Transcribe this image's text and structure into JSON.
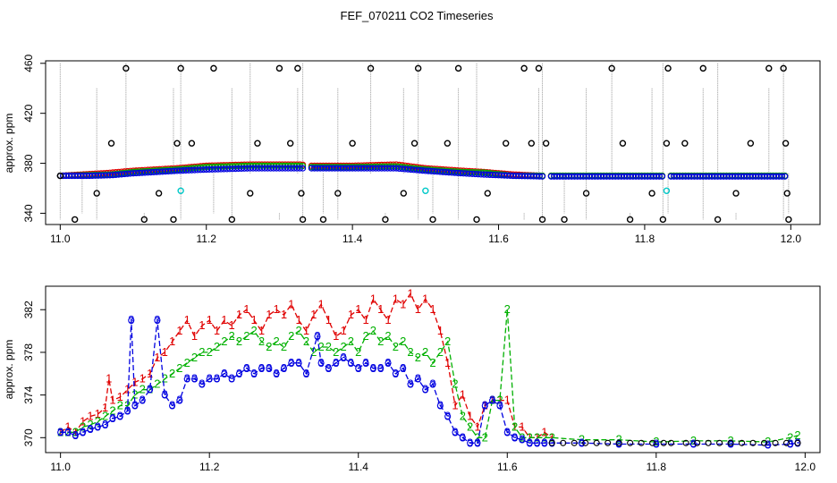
{
  "figure": {
    "title": "FEF_070211  CO2 Timeseries"
  },
  "colors": {
    "series1": "#e00000",
    "series2": "#00b000",
    "series3": "#0000e0",
    "black": "#000000",
    "cyan": "#00c8c8",
    "drop": "#9a9a9a"
  },
  "chart_data": [
    {
      "type": "scatter",
      "title": "FEF_070211  CO2 Timeseries",
      "xlabel": "",
      "ylabel": "approx. ppm",
      "xlim": [
        10.98,
        12.04
      ],
      "ylim": [
        331,
        462
      ],
      "xticks": [
        11.0,
        11.2,
        11.4,
        11.6,
        11.8,
        12.0
      ],
      "xtick_labels": [
        "11.0",
        "11.2",
        "11.4",
        "11.6",
        "11.8",
        "12.0"
      ],
      "yticks": [
        340,
        380,
        420,
        460
      ],
      "ytick_labels": [
        "340",
        "380",
        "420",
        "460"
      ],
      "gaps": [
        [
          11.335,
          11.34
        ],
        [
          11.66,
          11.67
        ],
        [
          11.825,
          11.835
        ]
      ],
      "series": [
        {
          "name": "1",
          "color": "#e00000",
          "keypoints": [
            [
              11.0,
              370
            ],
            [
              11.03,
              371
            ],
            [
              11.06,
              372
            ],
            [
              11.1,
              374
            ],
            [
              11.16,
              376
            ],
            [
              11.2,
              378
            ],
            [
              11.26,
              379
            ],
            [
              11.33,
              379
            ],
            [
              11.34,
              378
            ],
            [
              11.4,
              378
            ],
            [
              11.46,
              379
            ],
            [
              11.5,
              376
            ],
            [
              11.55,
              374
            ],
            [
              11.58,
              373
            ],
            [
              11.62,
              371
            ],
            [
              11.66,
              370
            ],
            [
              11.99,
              370
            ]
          ]
        },
        {
          "name": "2",
          "color": "#00b000",
          "keypoints": [
            [
              11.0,
              370
            ],
            [
              11.04,
              370.5
            ],
            [
              11.07,
              371
            ],
            [
              11.1,
              373
            ],
            [
              11.16,
              375
            ],
            [
              11.2,
              377
            ],
            [
              11.26,
              378
            ],
            [
              11.33,
              378
            ],
            [
              11.34,
              377
            ],
            [
              11.4,
              377
            ],
            [
              11.46,
              377.5
            ],
            [
              11.5,
              375
            ],
            [
              11.55,
              373
            ],
            [
              11.58,
              372.5
            ],
            [
              11.62,
              370
            ],
            [
              11.66,
              370
            ],
            [
              11.99,
              370
            ]
          ]
        },
        {
          "name": "3",
          "color": "#0000e0",
          "keypoints": [
            [
              11.0,
              370
            ],
            [
              11.04,
              370
            ],
            [
              11.07,
              370.5
            ],
            [
              11.1,
              372
            ],
            [
              11.16,
              374
            ],
            [
              11.2,
              375
            ],
            [
              11.26,
              376
            ],
            [
              11.33,
              376
            ],
            [
              11.34,
              376
            ],
            [
              11.4,
              376
            ],
            [
              11.46,
              376
            ],
            [
              11.5,
              374
            ],
            [
              11.55,
              372
            ],
            [
              11.58,
              371
            ],
            [
              11.62,
              370
            ],
            [
              11.66,
              369.5
            ],
            [
              11.99,
              369.5
            ]
          ]
        }
      ],
      "black_outliers": [
        [
          11.0,
          370
        ],
        [
          11.02,
          335
        ],
        [
          11.05,
          356
        ],
        [
          11.07,
          396
        ],
        [
          11.09,
          456
        ],
        [
          11.115,
          335
        ],
        [
          11.135,
          356
        ],
        [
          11.155,
          335
        ],
        [
          11.16,
          396
        ],
        [
          11.165,
          456
        ],
        [
          11.18,
          396
        ],
        [
          11.21,
          456
        ],
        [
          11.235,
          335
        ],
        [
          11.26,
          356
        ],
        [
          11.27,
          396
        ],
        [
          11.3,
          456
        ],
        [
          11.315,
          396
        ],
        [
          11.325,
          456
        ],
        [
          11.33,
          356
        ],
        [
          11.332,
          335
        ],
        [
          11.36,
          335
        ],
        [
          11.38,
          356
        ],
        [
          11.4,
          396
        ],
        [
          11.425,
          456
        ],
        [
          11.445,
          335
        ],
        [
          11.47,
          356
        ],
        [
          11.485,
          396
        ],
        [
          11.49,
          456
        ],
        [
          11.51,
          335
        ],
        [
          11.53,
          396
        ],
        [
          11.545,
          456
        ],
        [
          11.57,
          335
        ],
        [
          11.585,
          356
        ],
        [
          11.61,
          396
        ],
        [
          11.635,
          456
        ],
        [
          11.645,
          396
        ],
        [
          11.655,
          456
        ],
        [
          11.66,
          335
        ],
        [
          11.665,
          396
        ],
        [
          11.69,
          335
        ],
        [
          11.72,
          356
        ],
        [
          11.755,
          456
        ],
        [
          11.77,
          396
        ],
        [
          11.78,
          335
        ],
        [
          11.81,
          356
        ],
        [
          11.825,
          335
        ],
        [
          11.83,
          396
        ],
        [
          11.832,
          456
        ],
        [
          11.855,
          396
        ],
        [
          11.88,
          456
        ],
        [
          11.9,
          335
        ],
        [
          11.925,
          356
        ],
        [
          11.945,
          396
        ],
        [
          11.97,
          456
        ],
        [
          11.99,
          456
        ],
        [
          11.993,
          396
        ],
        [
          11.995,
          356
        ],
        [
          11.997,
          335
        ]
      ],
      "cyan_points": [
        [
          11.165,
          358
        ],
        [
          11.5,
          358
        ],
        [
          11.83,
          358
        ]
      ],
      "drop_lines_x": [
        11.0,
        11.03,
        11.05,
        11.09,
        11.115,
        11.155,
        11.165,
        11.21,
        11.235,
        11.26,
        11.3,
        11.325,
        11.332,
        11.36,
        11.38,
        11.425,
        11.445,
        11.47,
        11.49,
        11.51,
        11.545,
        11.57,
        11.635,
        11.655,
        11.66,
        11.69,
        11.72,
        11.755,
        11.78,
        11.81,
        11.825,
        11.832,
        11.88,
        11.9,
        11.925,
        11.97,
        11.99,
        11.997
      ]
    },
    {
      "type": "line",
      "title": "",
      "xlabel": "",
      "ylabel": "approx. ppm",
      "xlim": [
        10.98,
        12.02
      ],
      "ylim": [
        368.6,
        384.2
      ],
      "xticks": [
        11.0,
        11.2,
        11.4,
        11.6,
        11.8,
        12.0
      ],
      "xtick_labels": [
        "11.0",
        "11.2",
        "11.4",
        "11.6",
        "11.8",
        "12.0"
      ],
      "yticks": [
        370,
        374,
        378,
        382
      ],
      "ytick_labels": [
        "370",
        "374",
        "378",
        "382"
      ],
      "marker_labels": [
        "1",
        "2",
        "3"
      ],
      "series": [
        {
          "name": "1",
          "label": "1",
          "color": "#e00000",
          "x": [
            11.0,
            11.01,
            11.02,
            11.03,
            11.04,
            11.05,
            11.06,
            11.065,
            11.07,
            11.08,
            11.09,
            11.1,
            11.11,
            11.12,
            11.13,
            11.14,
            11.15,
            11.16,
            11.17,
            11.18,
            11.19,
            11.2,
            11.21,
            11.22,
            11.23,
            11.24,
            11.25,
            11.26,
            11.27,
            11.28,
            11.29,
            11.3,
            11.31,
            11.32,
            11.33,
            11.34,
            11.35,
            11.36,
            11.37,
            11.38,
            11.39,
            11.4,
            11.41,
            11.42,
            11.43,
            11.44,
            11.45,
            11.46,
            11.47,
            11.48,
            11.49,
            11.5,
            11.51,
            11.52,
            11.53,
            11.54,
            11.55,
            11.56,
            11.57,
            11.58,
            11.59,
            11.6,
            11.61,
            11.62,
            11.63,
            11.64,
            11.65,
            11.66
          ],
          "y": [
            370.5,
            371,
            370.5,
            371.5,
            372,
            372.2,
            372.8,
            375.5,
            373.5,
            373.8,
            374.5,
            375.2,
            375.5,
            376,
            377.5,
            378,
            379,
            380,
            381,
            379.5,
            380.5,
            381,
            380,
            381,
            380.5,
            381.5,
            382,
            381,
            380,
            381.5,
            382,
            381.5,
            382.5,
            381,
            380,
            381.5,
            382.5,
            381,
            379.5,
            380,
            381.5,
            382,
            381,
            383,
            382,
            381,
            383,
            382.5,
            383.5,
            382,
            383,
            382,
            380,
            377,
            373,
            374,
            372,
            371,
            373,
            373.5,
            373.5,
            373.5,
            371,
            371,
            370,
            370,
            370.5,
            370
          ]
        },
        {
          "name": "2",
          "label": "2",
          "color": "#00b000",
          "x": [
            11.0,
            11.01,
            11.02,
            11.03,
            11.04,
            11.05,
            11.06,
            11.07,
            11.08,
            11.09,
            11.1,
            11.11,
            11.12,
            11.13,
            11.14,
            11.15,
            11.16,
            11.17,
            11.18,
            11.19,
            11.2,
            11.21,
            11.22,
            11.23,
            11.24,
            11.25,
            11.26,
            11.27,
            11.28,
            11.29,
            11.3,
            11.31,
            11.32,
            11.33,
            11.34,
            11.35,
            11.36,
            11.37,
            11.38,
            11.39,
            11.4,
            11.41,
            11.42,
            11.43,
            11.44,
            11.45,
            11.46,
            11.47,
            11.48,
            11.49,
            11.5,
            11.51,
            11.52,
            11.53,
            11.54,
            11.55,
            11.56,
            11.57,
            11.58,
            11.59,
            11.6,
            11.61,
            11.62,
            11.63,
            11.64,
            11.65,
            11.66,
            11.7,
            11.75,
            11.8,
            11.85,
            11.9,
            11.95,
            11.98,
            11.99
          ],
          "y": [
            370.5,
            370.5,
            370.5,
            371,
            371.2,
            371.5,
            372,
            372.5,
            373,
            373,
            374,
            374.5,
            374.5,
            375,
            375.5,
            376,
            376.5,
            377,
            377.5,
            378,
            378,
            378.5,
            379,
            379.5,
            379,
            379.5,
            380,
            379,
            378.5,
            379,
            378.5,
            379.5,
            380,
            379,
            378,
            378.5,
            378.5,
            378,
            378.5,
            379,
            378,
            379.5,
            380,
            379,
            379.5,
            378.5,
            379,
            378,
            377.5,
            378,
            377,
            378,
            379,
            375,
            372,
            371,
            370,
            370,
            373.5,
            373.5,
            382,
            371,
            370,
            370,
            370,
            370,
            370,
            369.8,
            369.8,
            369.6,
            369.7,
            369.7,
            369.6,
            370,
            370.2
          ]
        },
        {
          "name": "3",
          "label": "3",
          "color": "#0000e0",
          "x": [
            11.0,
            11.01,
            11.02,
            11.03,
            11.04,
            11.05,
            11.06,
            11.07,
            11.08,
            11.09,
            11.095,
            11.1,
            11.11,
            11.12,
            11.13,
            11.14,
            11.15,
            11.16,
            11.17,
            11.18,
            11.19,
            11.2,
            11.21,
            11.22,
            11.23,
            11.24,
            11.25,
            11.26,
            11.27,
            11.28,
            11.29,
            11.3,
            11.31,
            11.32,
            11.33,
            11.345,
            11.35,
            11.36,
            11.37,
            11.38,
            11.39,
            11.4,
            11.41,
            11.42,
            11.43,
            11.44,
            11.45,
            11.46,
            11.47,
            11.48,
            11.49,
            11.5,
            11.51,
            11.52,
            11.53,
            11.54,
            11.55,
            11.56,
            11.57,
            11.58,
            11.59,
            11.6,
            11.61,
            11.62,
            11.63,
            11.64,
            11.65,
            11.66,
            11.7,
            11.75,
            11.8,
            11.85,
            11.9,
            11.95,
            11.98,
            11.99
          ],
          "y": [
            370.5,
            370.5,
            370.2,
            370.5,
            370.8,
            371,
            371.2,
            371.8,
            372,
            372.5,
            381,
            373,
            373.5,
            374.5,
            381,
            374,
            373,
            373.5,
            375.5,
            375.5,
            375,
            375.5,
            375.5,
            376,
            375.5,
            376,
            376.5,
            376,
            376.5,
            376.5,
            376,
            376.5,
            377,
            377,
            376,
            379.5,
            377,
            376.5,
            377,
            377.5,
            377,
            376.5,
            377,
            376.5,
            376.5,
            377,
            376,
            376.5,
            375,
            375.5,
            374.5,
            375,
            373,
            372,
            370.5,
            370,
            369.5,
            369.5,
            373,
            373.5,
            373,
            370.5,
            370,
            369.8,
            369.5,
            369.5,
            369.5,
            369.5,
            369.5,
            369.4,
            369.4,
            369.4,
            369.4,
            369.3,
            369.4,
            369.5
          ]
        }
      ],
      "black_circles_x": [
        11.66,
        11.675,
        11.69,
        11.705,
        11.72,
        11.735,
        11.75,
        11.765,
        11.78,
        11.795,
        11.81,
        11.82,
        11.84,
        11.855,
        11.87,
        11.885,
        11.9,
        11.915,
        11.93,
        11.945,
        11.96,
        11.975,
        11.99
      ]
    }
  ]
}
